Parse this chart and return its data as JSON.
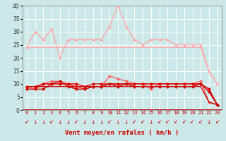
{
  "x": [
    0,
    1,
    2,
    3,
    4,
    5,
    6,
    7,
    8,
    9,
    10,
    11,
    12,
    13,
    14,
    15,
    16,
    17,
    18,
    19,
    20,
    21,
    22,
    23
  ],
  "bg_color": "#cce8e8",
  "grid_color": "#ffffff",
  "xlabel": "Vent moyen/en rafales ( km/h )",
  "ylim": [
    0,
    40
  ],
  "yticks": [
    0,
    5,
    10,
    15,
    20,
    25,
    30,
    35,
    40
  ],
  "series": [
    {
      "name": "diagonal_light",
      "color": "#ffaaaa",
      "lw": 1.0,
      "marker": null,
      "values": [
        24,
        24,
        24,
        24,
        24,
        24,
        24,
        24,
        24,
        24,
        24,
        24,
        24,
        24,
        24,
        24,
        24,
        24,
        24,
        24,
        24,
        24,
        15,
        10
      ]
    },
    {
      "name": "jagged_light",
      "color": "#ffaaaa",
      "lw": 1.0,
      "marker": "^",
      "markersize": 2.5,
      "values": [
        24,
        30,
        27,
        31,
        20,
        27,
        27,
        27,
        27,
        27,
        32,
        40,
        32,
        27,
        25,
        27,
        27,
        27,
        25,
        25,
        25,
        25,
        15,
        10
      ]
    },
    {
      "name": "medium_jagged",
      "color": "#ff6666",
      "lw": 1.0,
      "marker": "D",
      "markersize": 2,
      "values": [
        9,
        8,
        10,
        11,
        11,
        10,
        8,
        8,
        9,
        9,
        13,
        12,
        11,
        10,
        10,
        8,
        10,
        10,
        10,
        10,
        10,
        11,
        3,
        2
      ]
    },
    {
      "name": "medium2",
      "color": "#ff4444",
      "lw": 1.0,
      "marker": "D",
      "markersize": 2,
      "values": [
        8,
        8,
        10,
        10,
        10,
        10,
        9,
        8,
        9,
        9,
        10,
        10,
        10,
        10,
        10,
        10,
        10,
        10,
        10,
        10,
        10,
        10,
        7,
        2
      ]
    },
    {
      "name": "dark1",
      "color": "#dd0000",
      "lw": 1.0,
      "marker": "D",
      "markersize": 2,
      "values": [
        9,
        9,
        10,
        10,
        10,
        10,
        10,
        9,
        10,
        10,
        10,
        10,
        10,
        10,
        10,
        10,
        10,
        10,
        10,
        10,
        10,
        10,
        8,
        2
      ]
    },
    {
      "name": "dark2",
      "color": "#cc0000",
      "lw": 1.0,
      "marker": "D",
      "markersize": 2,
      "values": [
        8,
        8,
        8,
        10,
        11,
        9,
        8,
        8,
        9,
        9,
        10,
        9,
        10,
        9,
        9,
        9,
        9,
        9,
        9,
        9,
        9,
        10,
        7,
        2
      ]
    },
    {
      "name": "flat_low",
      "color": "#cc0000",
      "lw": 1.0,
      "marker": null,
      "values": [
        9,
        9,
        9,
        9,
        9,
        9,
        9,
        9,
        9,
        9,
        9,
        9,
        9,
        9,
        9,
        9,
        9,
        9,
        9,
        9,
        9,
        9,
        3,
        2
      ]
    }
  ],
  "arrow_chars": [
    "↙",
    "↓",
    "↓",
    "↙",
    "↓",
    "↓",
    "↙",
    "↓",
    "↓",
    "↓",
    "↙",
    "↓",
    "↓",
    "↙",
    "↙",
    "↓",
    "↙",
    "↙",
    "↙",
    "↙",
    "↙",
    "↙",
    "↓",
    "↙"
  ]
}
